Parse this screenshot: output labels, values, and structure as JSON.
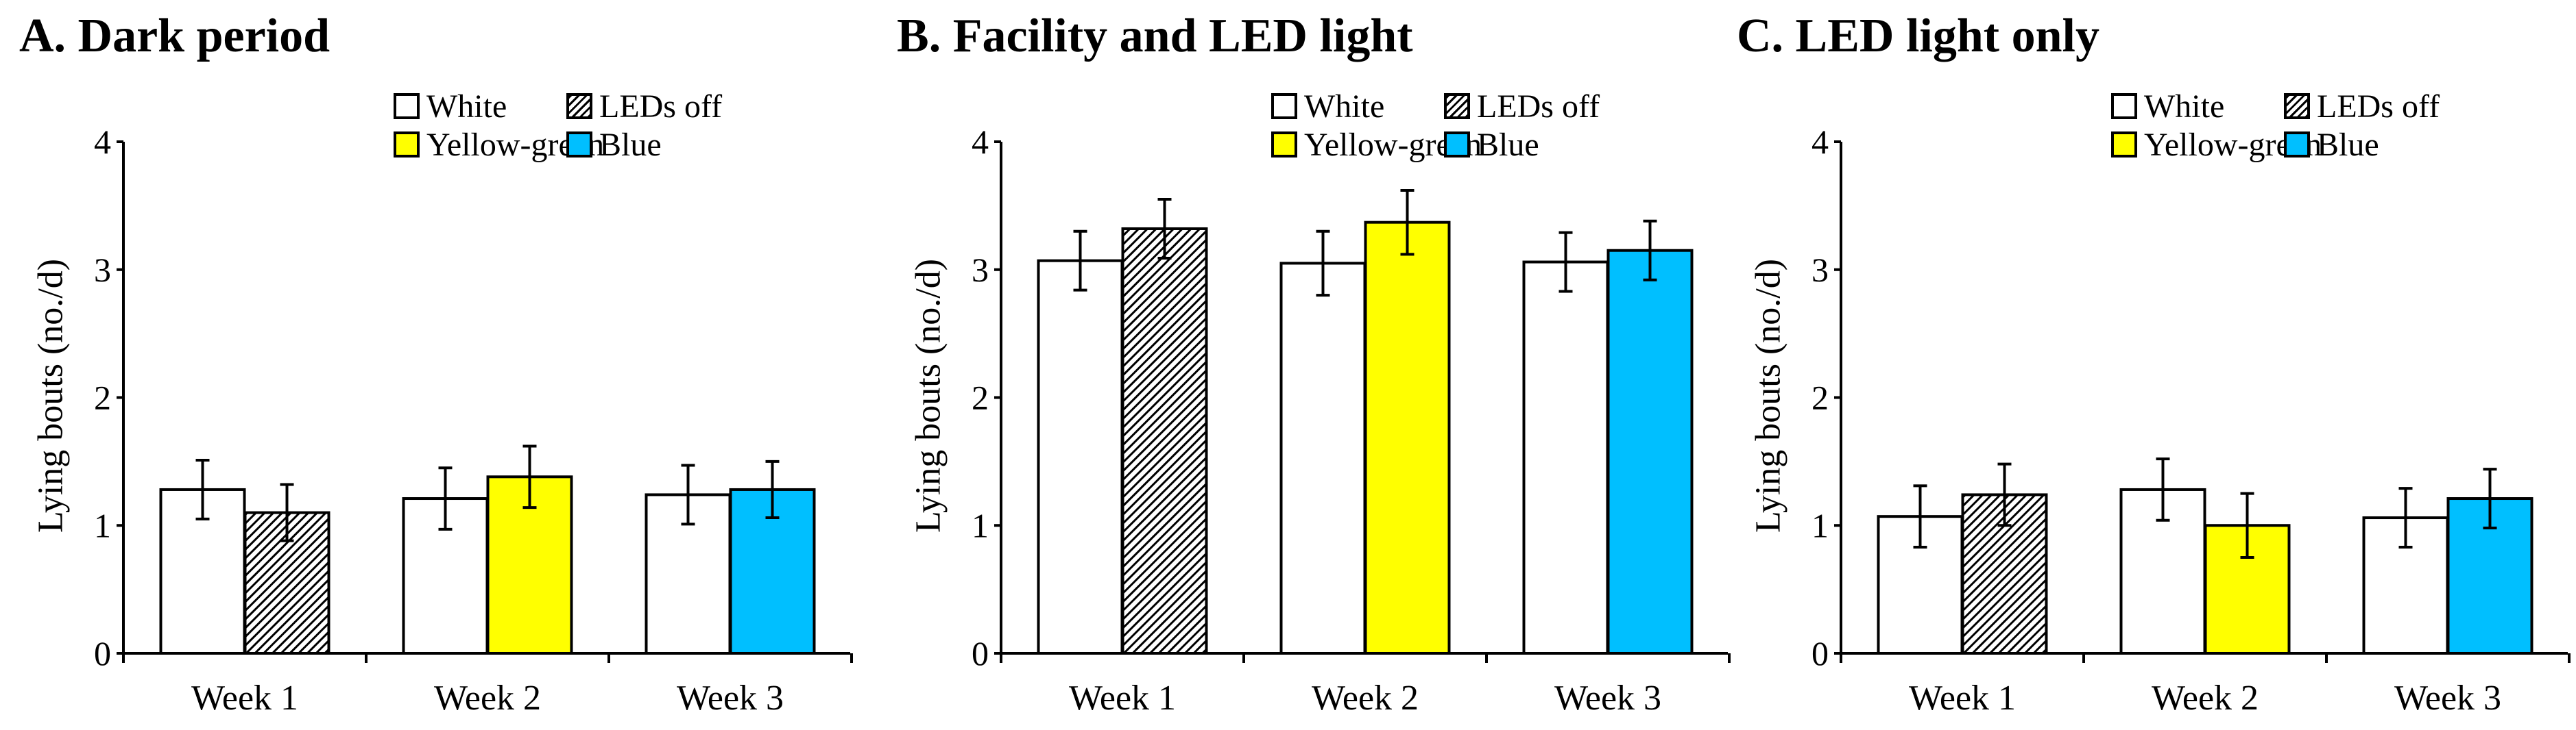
{
  "colors": {
    "White": "#ffffff",
    "Yellow-green": "#ffff00",
    "Blue": "#00bfff",
    "axis": "#000000"
  },
  "legend": [
    {
      "label": "White",
      "key": "White"
    },
    {
      "label": "LEDs off",
      "key": "LEDs off"
    },
    {
      "label": "Yellow-green",
      "key": "Yellow-green"
    },
    {
      "label": "Blue",
      "key": "Blue"
    }
  ],
  "chart_data": [
    {
      "type": "bar",
      "title": "A. Dark period",
      "ylabel": "Lying bouts (no./d)",
      "ylim": [
        0,
        4
      ],
      "yticks": [
        "0",
        "1",
        "2",
        "3",
        "4"
      ],
      "groups": [
        {
          "label": "Week 1",
          "bars": [
            {
              "series": "White",
              "value": 1.28,
              "error": 0.23
            },
            {
              "series": "LEDs off",
              "value": 1.1,
              "error": 0.22
            }
          ]
        },
        {
          "label": "Week 2",
          "bars": [
            {
              "series": "White",
              "value": 1.21,
              "error": 0.24
            },
            {
              "series": "Yellow-green",
              "value": 1.38,
              "error": 0.24
            }
          ]
        },
        {
          "label": "Week 3",
          "bars": [
            {
              "series": "White",
              "value": 1.24,
              "error": 0.23
            },
            {
              "series": "Blue",
              "value": 1.28,
              "error": 0.22
            }
          ]
        }
      ]
    },
    {
      "type": "bar",
      "title": "B. Facility and LED light",
      "ylabel": "Lying bouts (no./d)",
      "ylim": [
        0,
        4
      ],
      "yticks": [
        "0",
        "1",
        "2",
        "3",
        "4"
      ],
      "groups": [
        {
          "label": "Week 1",
          "bars": [
            {
              "series": "White",
              "value": 3.07,
              "error": 0.23
            },
            {
              "series": "LEDs off",
              "value": 3.32,
              "error": 0.23
            }
          ]
        },
        {
          "label": "Week 2",
          "bars": [
            {
              "series": "White",
              "value": 3.05,
              "error": 0.25
            },
            {
              "series": "Yellow-green",
              "value": 3.37,
              "error": 0.25
            }
          ]
        },
        {
          "label": "Week 3",
          "bars": [
            {
              "series": "White",
              "value": 3.06,
              "error": 0.23
            },
            {
              "series": "Blue",
              "value": 3.15,
              "error": 0.23
            }
          ]
        }
      ]
    },
    {
      "type": "bar",
      "title": "C. LED light only",
      "ylabel": "Lying bouts (no./d)",
      "ylim": [
        0,
        4
      ],
      "yticks": [
        "0",
        "1",
        "2",
        "3",
        "4"
      ],
      "groups": [
        {
          "label": "Week 1",
          "bars": [
            {
              "series": "White",
              "value": 1.07,
              "error": 0.24
            },
            {
              "series": "LEDs off",
              "value": 1.24,
              "error": 0.24
            }
          ]
        },
        {
          "label": "Week 2",
          "bars": [
            {
              "series": "White",
              "value": 1.28,
              "error": 0.24
            },
            {
              "series": "Yellow-green",
              "value": 1.0,
              "error": 0.25
            }
          ]
        },
        {
          "label": "Week 3",
          "bars": [
            {
              "series": "White",
              "value": 1.06,
              "error": 0.23
            },
            {
              "series": "Blue",
              "value": 1.21,
              "error": 0.23
            }
          ]
        }
      ]
    }
  ]
}
